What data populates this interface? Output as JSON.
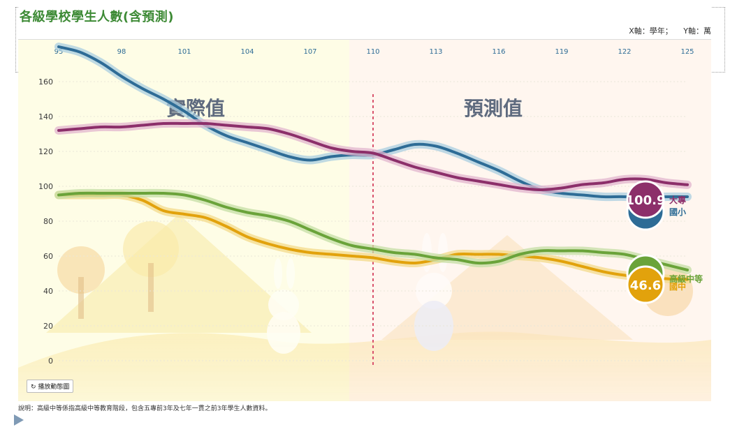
{
  "page": {
    "title": "各級學校學生人數(含預測)",
    "axis_legend_x": "X軸：學年；",
    "axis_legend_y": "Y軸：萬",
    "region_actual": "實際值",
    "region_forecast": "預測值",
    "replay_label": "播放動態圖",
    "note": "說明：高級中等係指高級中等教育階段，包含五專前3年及七年一貫之前3年學生人數資料。",
    "end_badge_top": "100.9",
    "end_badge_bottom": "46.6"
  },
  "chart_data": {
    "type": "line",
    "title": "各級學校學生人數(含預測)",
    "xlabel": "學年",
    "ylabel": "萬",
    "x_ticks": [
      95,
      98,
      101,
      104,
      107,
      110,
      113,
      116,
      119,
      122,
      125
    ],
    "y_ticks": [
      0,
      20,
      40,
      60,
      80,
      100,
      120,
      140,
      160
    ],
    "xlim": [
      95,
      125
    ],
    "ylim": [
      0,
      180
    ],
    "forecast_start": 110,
    "x": [
      95,
      96,
      97,
      98,
      99,
      100,
      101,
      102,
      103,
      104,
      105,
      106,
      107,
      108,
      109,
      110,
      111,
      112,
      113,
      114,
      115,
      116,
      117,
      118,
      119,
      120,
      121,
      122,
      123,
      124,
      125
    ],
    "series": [
      {
        "name": "國小",
        "color": "#2e6c96",
        "glow": "#a9cde0",
        "values": [
          180,
          177,
          171,
          163,
          156,
          150,
          143,
          135,
          129,
          125,
          121,
          117,
          115,
          117,
          118,
          118,
          121,
          124,
          123,
          119,
          114,
          109,
          103,
          98,
          96,
          95,
          94,
          94,
          93,
          94,
          94
        ]
      },
      {
        "name": "大專",
        "color": "#8c2f6a",
        "glow": "#e2b4ce",
        "values": [
          132,
          133,
          134,
          134,
          135,
          136,
          136,
          136,
          135,
          134,
          133,
          130,
          126,
          122,
          120,
          119,
          115,
          111,
          108,
          105,
          103,
          101,
          99,
          98,
          99,
          101,
          102,
          104,
          104,
          102,
          100.9
        ]
      },
      {
        "name": "國中",
        "color": "#e2a20c",
        "glow": "#f3d98a",
        "values": [
          95,
          95,
          95,
          95,
          92,
          86,
          84,
          82,
          77,
          71,
          67,
          64,
          62,
          61,
          60,
          59,
          57,
          56,
          58,
          61,
          61,
          61,
          60,
          59,
          57,
          54,
          51,
          49,
          48,
          47,
          46.6
        ]
      },
      {
        "name": "高級中等",
        "color": "#6aa33a",
        "glow": "#c4dea4",
        "values": [
          95,
          96,
          96,
          96,
          96,
          96,
          95,
          92,
          88,
          85,
          83,
          80,
          75,
          70,
          66,
          64,
          62,
          61,
          59,
          58,
          56,
          57,
          61,
          63,
          63,
          63,
          62,
          61,
          58,
          55,
          52
        ]
      }
    ]
  }
}
